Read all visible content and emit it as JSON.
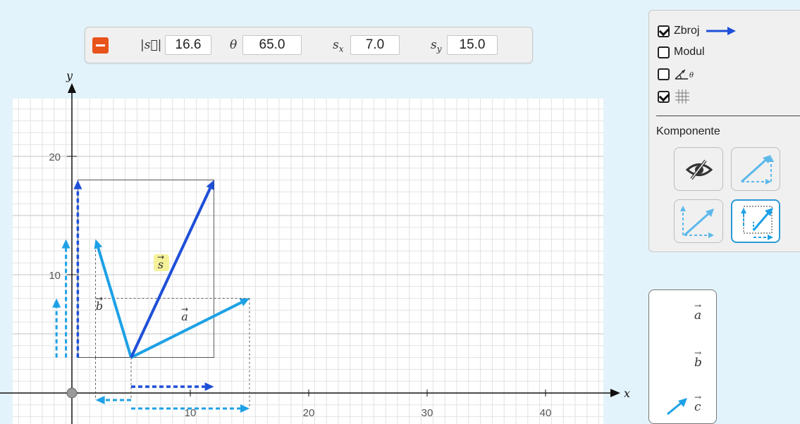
{
  "toolbar": {
    "remove_button": "remove",
    "magnitude": {
      "label": "|s⃗|",
      "value": "16.6"
    },
    "angle": {
      "label": "θ",
      "value": "65.0"
    },
    "sx": {
      "label": "s",
      "sub": "x",
      "value": "7.0"
    },
    "sy": {
      "label": "s",
      "sub": "y",
      "value": "15.0"
    }
  },
  "panel": {
    "options": [
      {
        "label": "Zbroj",
        "checked": true,
        "icon": "blue-arrow-icon"
      },
      {
        "label": "Modul",
        "checked": false
      },
      {
        "label": "",
        "checked": false,
        "icon": "angle-icon"
      },
      {
        "label": "",
        "checked": true,
        "icon": "grid-icon"
      }
    ],
    "section_title": "Komponente",
    "component_buttons": [
      "hide-components-icon",
      "components-at-tip-icon",
      "components-at-tail-icon",
      "components-at-origin-icon"
    ]
  },
  "graph": {
    "x_axis_label": "x",
    "y_axis_label": "y",
    "x_ticks": [
      "10",
      "20",
      "30",
      "40"
    ],
    "y_ticks": [
      "10",
      "20"
    ],
    "vector_labels": {
      "a": "a",
      "b": "b",
      "s": "s"
    },
    "accent_color": "#1da1e6",
    "sum_color": "#1e4fd8",
    "highlight_color": "#f5f29a"
  },
  "vectors": {
    "origin": [
      5,
      3
    ],
    "a": [
      10,
      5
    ],
    "b": [
      -3,
      10
    ],
    "s": [
      7,
      15
    ]
  },
  "legend": {
    "items": [
      "a",
      "b",
      "c"
    ]
  }
}
